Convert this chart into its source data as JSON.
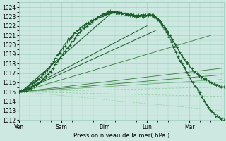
{
  "xlabel": "Pression niveau de la mer( hPa )",
  "ylim": [
    1012,
    1024.5
  ],
  "yticks": [
    1012,
    1013,
    1014,
    1015,
    1016,
    1017,
    1018,
    1019,
    1020,
    1021,
    1022,
    1023,
    1024
  ],
  "xtick_positions": [
    0,
    1,
    2,
    3,
    4
  ],
  "xtick_labels": [
    "Ven",
    "Sam",
    "Dim",
    "Lun",
    "Mar"
  ],
  "xlim": [
    0,
    4.8
  ],
  "bg_color": "#cce8e0",
  "grid_color": "#99ccbb",
  "dark_green": "#1a5c2a",
  "mid_green": "#3a7a3a",
  "light_green": "#5aaa6a",
  "dashed_green": "#88cc99"
}
